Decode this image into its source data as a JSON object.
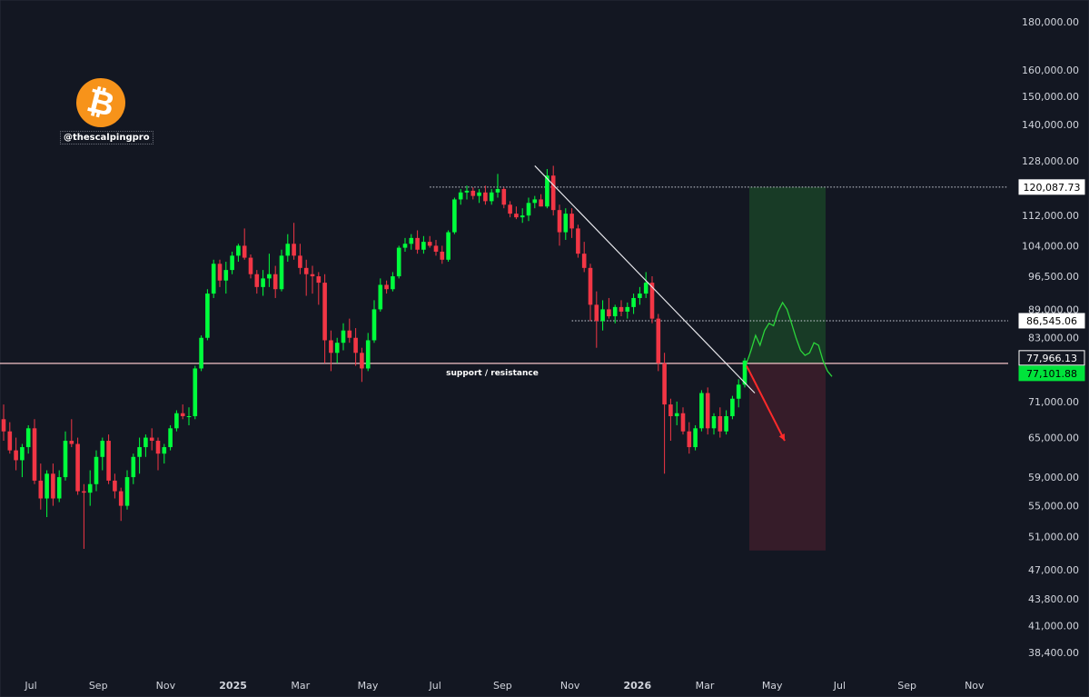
{
  "branding": {
    "logo_icon": "bitcoin-icon",
    "handle": "@thescalpingpro"
  },
  "colors": {
    "background": "#131722",
    "up": "#00ff3c",
    "down": "#f23645",
    "axis_text": "#d1d4dc"
  },
  "annotations": {
    "support_resistance": "support / resistance"
  },
  "chart_data": {
    "type": "candlestick",
    "scale": "log",
    "ylim": [
      36800,
      195000
    ],
    "y_ticks": [
      "180,000.00",
      "160,000.00",
      "150,000.00",
      "140,000.00",
      "128,000.00",
      "112,000.00",
      "104,000.00",
      "96,500.00",
      "89,000.00",
      "83,000.00",
      "71,000.00",
      "65,000.00",
      "59,000.00",
      "55,000.00",
      "51,000.00",
      "47,000.00",
      "43,800.00",
      "41,000.00",
      "38,400.00"
    ],
    "x_ticks": [
      "Jul",
      "Sep",
      "Nov",
      "2025",
      "Mar",
      "May",
      "Jul",
      "Sep",
      "Nov",
      "2026",
      "Mar",
      "May",
      "Jul",
      "Sep",
      "Nov"
    ],
    "price_labels": [
      {
        "value": 120087.73,
        "label": "120,087.73",
        "style": "light"
      },
      {
        "value": 86545.06,
        "label": "86,545.06",
        "style": "light"
      },
      {
        "value": 77966.13,
        "label": "77,966.13",
        "style": "dark"
      },
      {
        "value": 77101.88,
        "label": "77,101.88",
        "style": "green"
      }
    ],
    "candles_ohlc": [
      [
        68000,
        70500,
        64500,
        66000
      ],
      [
        66000,
        67500,
        62500,
        63000
      ],
      [
        63000,
        65000,
        60000,
        61500
      ],
      [
        61500,
        64000,
        59000,
        63500
      ],
      [
        63500,
        67000,
        62500,
        66500
      ],
      [
        66500,
        68000,
        58000,
        58500
      ],
      [
        58500,
        61000,
        54500,
        56000
      ],
      [
        56000,
        60000,
        53500,
        59500
      ],
      [
        59500,
        61000,
        55000,
        56000
      ],
      [
        56000,
        60000,
        55500,
        59000
      ],
      [
        59000,
        66000,
        58500,
        64500
      ],
      [
        64500,
        68000,
        63500,
        64000
      ],
      [
        64000,
        65000,
        56500,
        57000
      ],
      [
        57000,
        58000,
        49500,
        56800
      ],
      [
        56800,
        60000,
        55000,
        58000
      ],
      [
        58000,
        63000,
        57000,
        62000
      ],
      [
        62000,
        65000,
        60000,
        64500
      ],
      [
        64500,
        65500,
        58000,
        58500
      ],
      [
        58500,
        59500,
        56000,
        57000
      ],
      [
        57000,
        57500,
        53000,
        55000
      ],
      [
        55000,
        60000,
        54500,
        59000
      ],
      [
        59000,
        62500,
        58000,
        62000
      ],
      [
        62000,
        65000,
        59500,
        63500
      ],
      [
        63500,
        65500,
        62000,
        65000
      ],
      [
        65000,
        66500,
        63000,
        64500
      ],
      [
        64500,
        65000,
        60000,
        62500
      ],
      [
        62500,
        64000,
        61000,
        63500
      ],
      [
        63500,
        67000,
        63000,
        66500
      ],
      [
        66500,
        69500,
        66000,
        69000
      ],
      [
        69000,
        70500,
        68000,
        68500
      ],
      [
        68500,
        70000,
        67000,
        68500
      ],
      [
        68500,
        77500,
        68000,
        77000
      ],
      [
        77000,
        83500,
        76500,
        83000
      ],
      [
        83000,
        93500,
        82500,
        92500
      ],
      [
        92500,
        100500,
        91500,
        99500
      ],
      [
        99500,
        100500,
        94000,
        95500
      ],
      [
        95500,
        100000,
        92500,
        98000
      ],
      [
        98000,
        102500,
        97000,
        101500
      ],
      [
        101500,
        104500,
        100000,
        104000
      ],
      [
        104000,
        108500,
        100500,
        101000
      ],
      [
        101000,
        101800,
        96000,
        97000
      ],
      [
        97000,
        98000,
        92500,
        94000
      ],
      [
        94000,
        98000,
        92000,
        96000
      ],
      [
        96000,
        102000,
        94000,
        97000
      ],
      [
        97000,
        99000,
        91500,
        93500
      ],
      [
        93500,
        103000,
        93000,
        101500
      ],
      [
        101500,
        107000,
        100000,
        104500
      ],
      [
        104500,
        110000,
        100500,
        101500
      ],
      [
        101500,
        104500,
        97000,
        98500
      ],
      [
        98500,
        100500,
        92000,
        97000
      ],
      [
        97000,
        99000,
        92500,
        96500
      ],
      [
        96500,
        97500,
        90000,
        95000
      ],
      [
        95000,
        97000,
        78000,
        82500
      ],
      [
        82500,
        84500,
        76500,
        80000
      ],
      [
        80000,
        83000,
        78000,
        82000
      ],
      [
        82000,
        86000,
        80500,
        84500
      ],
      [
        84500,
        87000,
        82000,
        83000
      ],
      [
        83000,
        85000,
        77500,
        80000
      ],
      [
        80000,
        81000,
        74500,
        77000
      ],
      [
        77000,
        84000,
        76500,
        82500
      ],
      [
        82500,
        91000,
        82000,
        89000
      ],
      [
        89000,
        96000,
        88500,
        94500
      ],
      [
        94500,
        95500,
        92500,
        93500
      ],
      [
        93500,
        97500,
        93000,
        96500
      ],
      [
        96500,
        104000,
        96000,
        103500
      ],
      [
        103500,
        106000,
        102500,
        104500
      ],
      [
        104500,
        107000,
        103000,
        106000
      ],
      [
        106000,
        108000,
        102000,
        103000
      ],
      [
        103000,
        106500,
        102000,
        105000
      ],
      [
        105000,
        106500,
        103500,
        104000
      ],
      [
        104000,
        105500,
        101500,
        102500
      ],
      [
        102500,
        104000,
        99500,
        100500
      ],
      [
        100500,
        108000,
        100000,
        107500
      ],
      [
        107500,
        117000,
        107000,
        116500
      ],
      [
        116500,
        119500,
        115000,
        118500
      ],
      [
        118500,
        120500,
        116500,
        119000
      ],
      [
        119000,
        120000,
        116500,
        117500
      ],
      [
        117500,
        119500,
        115500,
        118500
      ],
      [
        118500,
        120500,
        115000,
        116000
      ],
      [
        116000,
        119500,
        115000,
        118500
      ],
      [
        118500,
        124000,
        117000,
        119500
      ],
      [
        119500,
        120000,
        114000,
        115000
      ],
      [
        115000,
        116000,
        111500,
        112500
      ],
      [
        112500,
        114500,
        111000,
        111500
      ],
      [
        111500,
        114000,
        110000,
        112000
      ],
      [
        112000,
        117000,
        110500,
        115500
      ],
      [
        115500,
        117500,
        114000,
        116500
      ],
      [
        116500,
        118000,
        114500,
        114500
      ],
      [
        114500,
        125500,
        114000,
        123500
      ],
      [
        123500,
        126500,
        112000,
        113500
      ],
      [
        113500,
        115000,
        104000,
        107500
      ],
      [
        107500,
        114000,
        105500,
        112500
      ],
      [
        112500,
        114000,
        106000,
        108500
      ],
      [
        108500,
        109500,
        101000,
        102000
      ],
      [
        102000,
        105000,
        97500,
        98500
      ],
      [
        98500,
        99500,
        86500,
        90000
      ],
      [
        90000,
        93000,
        81000,
        86500
      ],
      [
        86500,
        91000,
        84500,
        89000
      ],
      [
        89000,
        91500,
        87000,
        87500
      ],
      [
        87500,
        90000,
        86000,
        89500
      ],
      [
        89500,
        91000,
        87500,
        88500
      ],
      [
        88500,
        90500,
        87000,
        89500
      ],
      [
        89500,
        92500,
        88000,
        91500
      ],
      [
        91500,
        94000,
        90000,
        92500
      ],
      [
        92500,
        97500,
        91500,
        95000
      ],
      [
        95000,
        96500,
        86000,
        87000
      ],
      [
        87000,
        88000,
        76500,
        78000
      ],
      [
        78000,
        80000,
        59500,
        70500
      ],
      [
        70500,
        71500,
        64500,
        68500
      ],
      [
        68500,
        71000,
        67000,
        69000
      ],
      [
        69000,
        70000,
        65500,
        66000
      ],
      [
        66000,
        67500,
        62500,
        63500
      ],
      [
        63500,
        67000,
        63000,
        66500
      ],
      [
        66500,
        73000,
        66000,
        72500
      ],
      [
        72500,
        73500,
        65500,
        66500
      ],
      [
        66500,
        69000,
        65500,
        68500
      ],
      [
        68500,
        70000,
        65000,
        66000
      ],
      [
        66000,
        69500,
        65500,
        68500
      ],
      [
        68500,
        72000,
        68000,
        71500
      ],
      [
        71500,
        75000,
        70000,
        74000
      ],
      [
        74000,
        79000,
        73500,
        78500
      ]
    ],
    "trendline": [
      [
        126500
      ],
      [
        72500
      ]
    ],
    "sr_level": 77966.13,
    "long_zone": {
      "top": 120087.73,
      "entry": 77966.13,
      "stop": 49300
    },
    "projection_path": [
      77966,
      80500,
      83500,
      81500,
      84500,
      86000,
      85500,
      88500,
      90500,
      89000,
      86000,
      83000,
      80500,
      79500,
      80000,
      82000,
      81500,
      78500,
      76500,
      75500
    ]
  }
}
